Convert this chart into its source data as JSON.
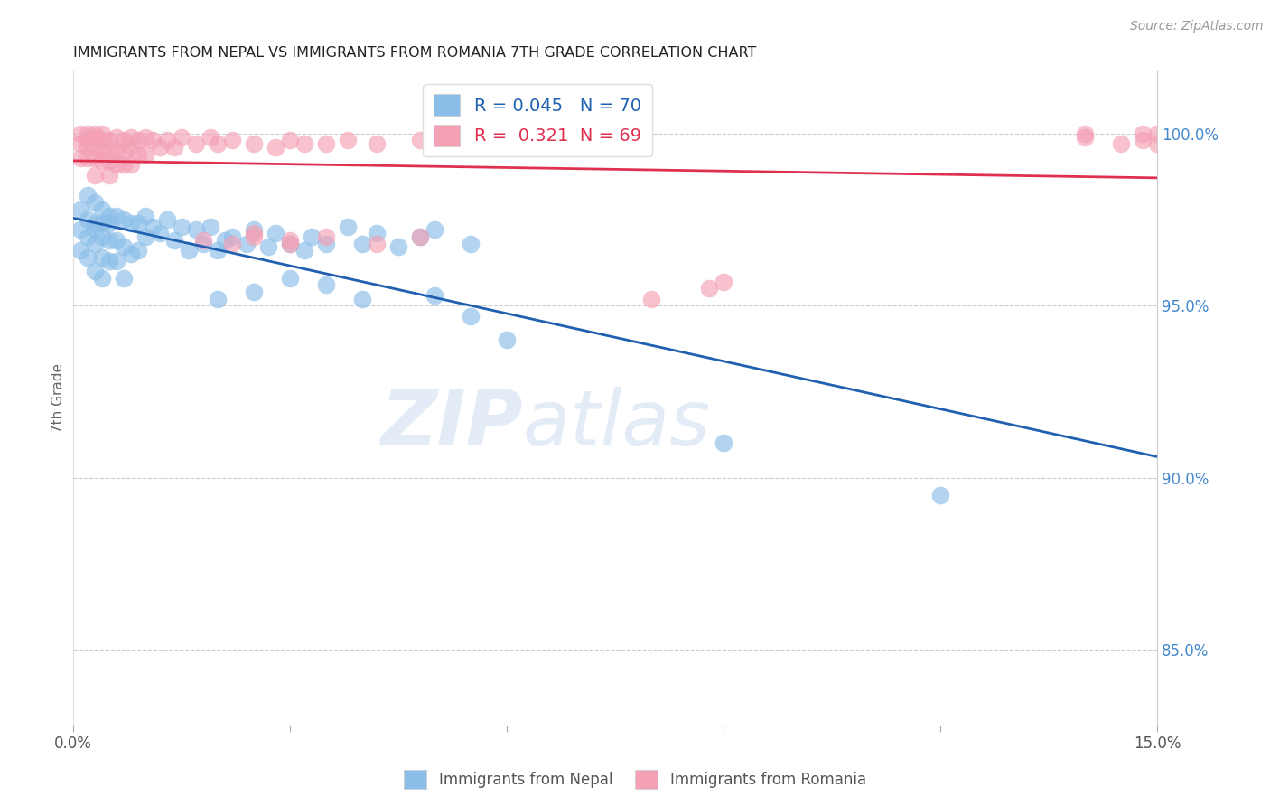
{
  "title": "IMMIGRANTS FROM NEPAL VS IMMIGRANTS FROM ROMANIA 7TH GRADE CORRELATION CHART",
  "source": "Source: ZipAtlas.com",
  "ylabel": "7th Grade",
  "ytick_labels": [
    "85.0%",
    "90.0%",
    "95.0%",
    "100.0%"
  ],
  "ytick_values": [
    0.85,
    0.9,
    0.95,
    1.0
  ],
  "xmin": 0.0,
  "xmax": 0.15,
  "ymin": 0.828,
  "ymax": 1.018,
  "nepal_R": "0.045",
  "nepal_N": "70",
  "romania_R": "0.321",
  "romania_N": "69",
  "nepal_color": "#8abde8",
  "romania_color": "#f4a0b5",
  "nepal_line_color": "#2060b0",
  "romania_line_color": "#e03050",
  "legend_text_color": "#2060b0",
  "legend_text_color2": "#e03050",
  "watermark_zip": "ZIP",
  "watermark_atlas": "atlas",
  "nepal_x": [
    0.001,
    0.001,
    0.001,
    0.002,
    0.002,
    0.002,
    0.002,
    0.003,
    0.003,
    0.003,
    0.003,
    0.003,
    0.004,
    0.004,
    0.004,
    0.004,
    0.004,
    0.005,
    0.005,
    0.005,
    0.005,
    0.006,
    0.006,
    0.006,
    0.007,
    0.007,
    0.007,
    0.008,
    0.008,
    0.009,
    0.009,
    0.01,
    0.01,
    0.011,
    0.012,
    0.013,
    0.014,
    0.015,
    0.016,
    0.017,
    0.018,
    0.019,
    0.02,
    0.021,
    0.022,
    0.024,
    0.025,
    0.027,
    0.028,
    0.03,
    0.032,
    0.033,
    0.035,
    0.038,
    0.04,
    0.042,
    0.045,
    0.048,
    0.05,
    0.055,
    0.02,
    0.025,
    0.03,
    0.035,
    0.04,
    0.05,
    0.055,
    0.06,
    0.09,
    0.12
  ],
  "nepal_y": [
    0.978,
    0.972,
    0.966,
    0.982,
    0.975,
    0.97,
    0.964,
    0.98,
    0.974,
    0.968,
    0.96,
    0.972,
    0.978,
    0.97,
    0.964,
    0.958,
    0.974,
    0.976,
    0.969,
    0.963,
    0.974,
    0.976,
    0.969,
    0.963,
    0.975,
    0.967,
    0.958,
    0.974,
    0.965,
    0.974,
    0.966,
    0.976,
    0.97,
    0.973,
    0.971,
    0.975,
    0.969,
    0.973,
    0.966,
    0.972,
    0.968,
    0.973,
    0.966,
    0.969,
    0.97,
    0.968,
    0.972,
    0.967,
    0.971,
    0.968,
    0.966,
    0.97,
    0.968,
    0.973,
    0.968,
    0.971,
    0.967,
    0.97,
    0.972,
    0.968,
    0.952,
    0.954,
    0.958,
    0.956,
    0.952,
    0.953,
    0.947,
    0.94,
    0.91,
    0.895
  ],
  "romania_x": [
    0.001,
    0.001,
    0.001,
    0.002,
    0.002,
    0.002,
    0.002,
    0.003,
    0.003,
    0.003,
    0.003,
    0.003,
    0.004,
    0.004,
    0.004,
    0.004,
    0.005,
    0.005,
    0.005,
    0.005,
    0.006,
    0.006,
    0.006,
    0.007,
    0.007,
    0.007,
    0.008,
    0.008,
    0.008,
    0.009,
    0.009,
    0.01,
    0.01,
    0.011,
    0.012,
    0.013,
    0.014,
    0.015,
    0.017,
    0.019,
    0.02,
    0.022,
    0.025,
    0.028,
    0.03,
    0.032,
    0.035,
    0.038,
    0.042,
    0.048,
    0.018,
    0.022,
    0.025,
    0.03,
    0.035,
    0.08,
    0.088,
    0.09,
    0.14,
    0.148,
    0.148,
    0.15,
    0.15,
    0.14,
    0.145,
    0.042,
    0.048,
    0.025,
    0.03
  ],
  "romania_y": [
    0.997,
    1.0,
    0.993,
    0.998,
    0.996,
    1.0,
    0.993,
    0.999,
    0.996,
    1.0,
    0.993,
    0.988,
    0.998,
    0.995,
    0.992,
    1.0,
    0.998,
    0.995,
    0.992,
    0.988,
    0.999,
    0.995,
    0.991,
    0.998,
    0.995,
    0.991,
    0.999,
    0.996,
    0.991,
    0.998,
    0.994,
    0.999,
    0.994,
    0.998,
    0.996,
    0.998,
    0.996,
    0.999,
    0.997,
    0.999,
    0.997,
    0.998,
    0.997,
    0.996,
    0.998,
    0.997,
    0.997,
    0.998,
    0.997,
    0.998,
    0.969,
    0.968,
    0.97,
    0.968,
    0.97,
    0.952,
    0.955,
    0.957,
    1.0,
    1.0,
    0.998,
    1.0,
    0.997,
    0.999,
    0.997,
    0.968,
    0.97,
    0.971,
    0.969
  ]
}
